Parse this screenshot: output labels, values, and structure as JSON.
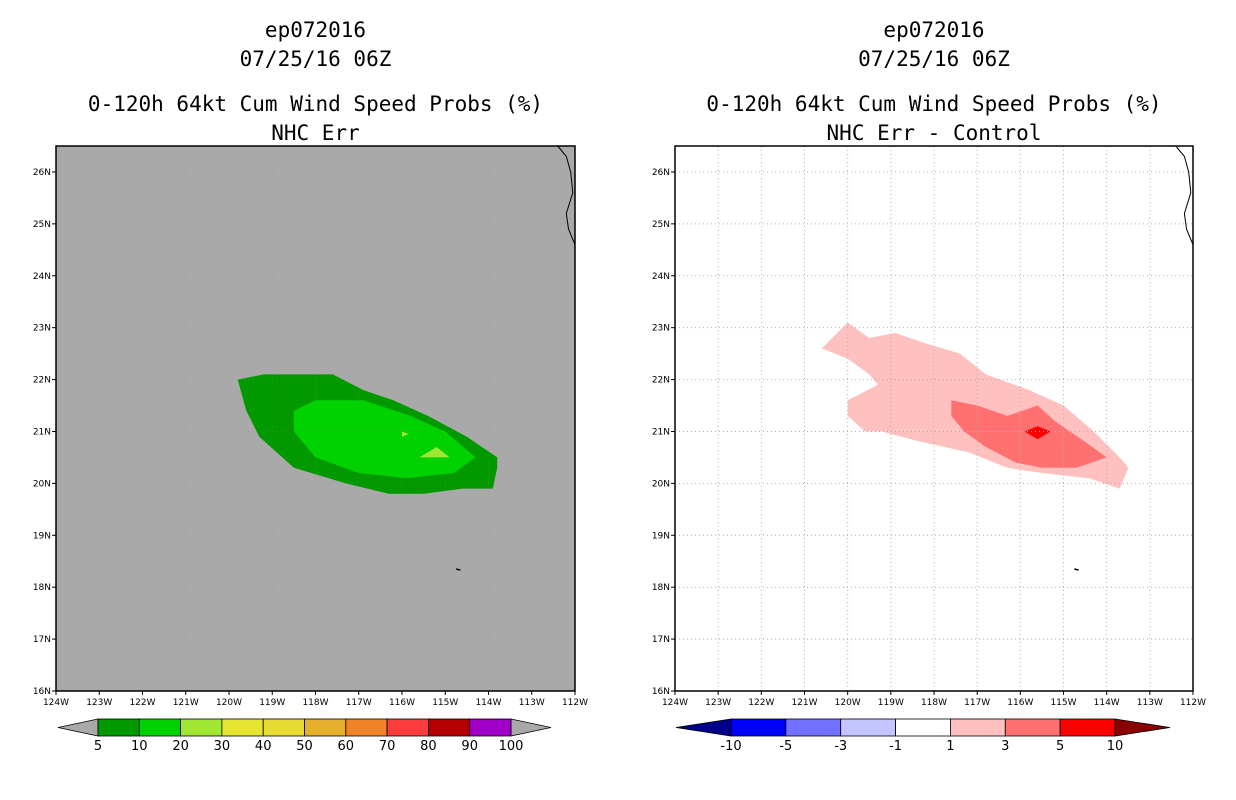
{
  "left": {
    "storm_id": "ep072016",
    "datetime": "07/25/16 06Z",
    "title_line1": "0-120h 64kt Cum Wind Speed Probs (%)",
    "title_line2": "NHC Err"
  },
  "right": {
    "storm_id": "ep072016",
    "datetime": "07/25/16 06Z",
    "title_line1": "0-120h 64kt Cum Wind Speed Probs (%)",
    "title_line2": "NHC Err - Control"
  },
  "chart_data": [
    {
      "type": "heatmap",
      "title": "0-120h 64kt Cum Wind Speed Probs (%) NHC Err",
      "x_ticks": [
        "124W",
        "123W",
        "122W",
        "121W",
        "120W",
        "119W",
        "118W",
        "117W",
        "116W",
        "115W",
        "114W",
        "113W",
        "112W"
      ],
      "y_ticks": [
        "16N",
        "17N",
        "18N",
        "19N",
        "20N",
        "21N",
        "22N",
        "23N",
        "24N",
        "25N",
        "26N"
      ],
      "xlim": [
        -124,
        -112
      ],
      "ylim": [
        16,
        26.5
      ],
      "background": "#a9a9a9",
      "colorbar": {
        "labels": [
          "5",
          "10",
          "20",
          "30",
          "40",
          "50",
          "60",
          "70",
          "80",
          "90",
          "100"
        ],
        "colors": [
          "#019800",
          "#00d200",
          "#a0e632",
          "#e6e632",
          "#e6dc32",
          "#e6af2d",
          "#f08228",
          "#fa3c3c",
          "#b40000",
          "#a000c8"
        ],
        "extend_color": "#a9a9a9"
      },
      "contours": [
        {
          "level": "5-10",
          "color": "#019800",
          "lonlat": [
            [
              -119.8,
              22.0
            ],
            [
              -119.2,
              22.1
            ],
            [
              -118.5,
              22.1
            ],
            [
              -117.6,
              22.1
            ],
            [
              -116.9,
              21.8
            ],
            [
              -116.2,
              21.6
            ],
            [
              -115.4,
              21.3
            ],
            [
              -114.5,
              20.9
            ],
            [
              -113.8,
              20.5
            ],
            [
              -113.8,
              20.3
            ],
            [
              -113.9,
              19.9
            ],
            [
              -114.6,
              19.9
            ],
            [
              -115.5,
              19.8
            ],
            [
              -116.3,
              19.8
            ],
            [
              -117.3,
              20.0
            ],
            [
              -118.5,
              20.3
            ],
            [
              -119.3,
              20.9
            ],
            [
              -119.6,
              21.4
            ],
            [
              -119.8,
              22.0
            ]
          ]
        },
        {
          "level": "10-20",
          "color": "#00d200",
          "lonlat": [
            [
              -118.5,
              21.4
            ],
            [
              -118.0,
              21.6
            ],
            [
              -116.9,
              21.6
            ],
            [
              -115.8,
              21.3
            ],
            [
              -115.0,
              21.0
            ],
            [
              -114.3,
              20.5
            ],
            [
              -114.8,
              20.2
            ],
            [
              -115.9,
              20.1
            ],
            [
              -117.0,
              20.2
            ],
            [
              -118.0,
              20.5
            ],
            [
              -118.5,
              21.0
            ],
            [
              -118.5,
              21.4
            ]
          ]
        },
        {
          "level": "20-30",
          "color": "#a0e632",
          "lonlat": [
            [
              -115.2,
              20.7
            ],
            [
              -114.9,
              20.5
            ],
            [
              -115.6,
              20.5
            ],
            [
              -115.2,
              20.7
            ]
          ]
        },
        {
          "level": "20-30",
          "color": "#a0e632",
          "lonlat": [
            [
              -116.0,
              21.0
            ],
            [
              -115.85,
              20.95
            ],
            [
              -116.0,
              20.9
            ],
            [
              -116.0,
              21.0
            ]
          ]
        }
      ]
    },
    {
      "type": "heatmap",
      "title": "0-120h 64kt Cum Wind Speed Probs (%) NHC Err - Control",
      "x_ticks": [
        "124W",
        "123W",
        "122W",
        "121W",
        "120W",
        "119W",
        "118W",
        "117W",
        "116W",
        "115W",
        "114W",
        "113W",
        "112W"
      ],
      "y_ticks": [
        "16N",
        "17N",
        "18N",
        "19N",
        "20N",
        "21N",
        "22N",
        "23N",
        "24N",
        "25N",
        "26N"
      ],
      "xlim": [
        -124,
        -112
      ],
      "ylim": [
        16,
        26.5
      ],
      "background": "#ffffff",
      "grid": true,
      "colorbar": {
        "labels": [
          "-10",
          "-5",
          "-3",
          "-1",
          "1",
          "3",
          "5",
          "10"
        ],
        "colors": [
          "#0000ff",
          "#7171ff",
          "#c4c4ff",
          "#ffffff",
          "#ffc0c0",
          "#ff7070",
          "#ff0000"
        ],
        "extend_low_color": "#00008b",
        "extend_high_color": "#8b0000"
      },
      "contours": [
        {
          "level": "1-3",
          "color": "#ffc0c0",
          "lonlat": [
            [
              -120.6,
              22.6
            ],
            [
              -120.0,
              23.1
            ],
            [
              -119.5,
              22.8
            ],
            [
              -118.9,
              22.9
            ],
            [
              -118.2,
              22.7
            ],
            [
              -117.4,
              22.5
            ],
            [
              -116.8,
              22.1
            ],
            [
              -115.8,
              21.8
            ],
            [
              -115.0,
              21.5
            ],
            [
              -114.3,
              21.0
            ],
            [
              -113.7,
              20.5
            ],
            [
              -113.5,
              20.3
            ],
            [
              -113.7,
              19.9
            ],
            [
              -114.4,
              20.1
            ],
            [
              -115.5,
              20.2
            ],
            [
              -116.3,
              20.3
            ],
            [
              -117.2,
              20.6
            ],
            [
              -118.3,
              20.8
            ],
            [
              -119.2,
              21.0
            ],
            [
              -119.6,
              21.0
            ],
            [
              -120.0,
              21.3
            ],
            [
              -120.0,
              21.6
            ],
            [
              -119.3,
              21.9
            ],
            [
              -119.5,
              22.1
            ],
            [
              -120.0,
              22.4
            ],
            [
              -120.6,
              22.6
            ]
          ]
        },
        {
          "level": "3-5",
          "color": "#ff7070",
          "lonlat": [
            [
              -117.6,
              21.6
            ],
            [
              -117.0,
              21.5
            ],
            [
              -116.3,
              21.3
            ],
            [
              -115.6,
              21.5
            ],
            [
              -115.2,
              21.2
            ],
            [
              -114.5,
              20.8
            ],
            [
              -114.0,
              20.5
            ],
            [
              -114.7,
              20.3
            ],
            [
              -115.5,
              20.3
            ],
            [
              -116.1,
              20.4
            ],
            [
              -116.8,
              20.7
            ],
            [
              -117.3,
              21.0
            ],
            [
              -117.6,
              21.3
            ],
            [
              -117.6,
              21.6
            ]
          ]
        },
        {
          "level": "5-10",
          "color": "#ff0000",
          "lonlat": [
            [
              -115.6,
              21.1
            ],
            [
              -115.3,
              21.0
            ],
            [
              -115.6,
              20.85
            ],
            [
              -115.9,
              21.0
            ],
            [
              -115.6,
              21.1
            ]
          ]
        }
      ]
    }
  ]
}
